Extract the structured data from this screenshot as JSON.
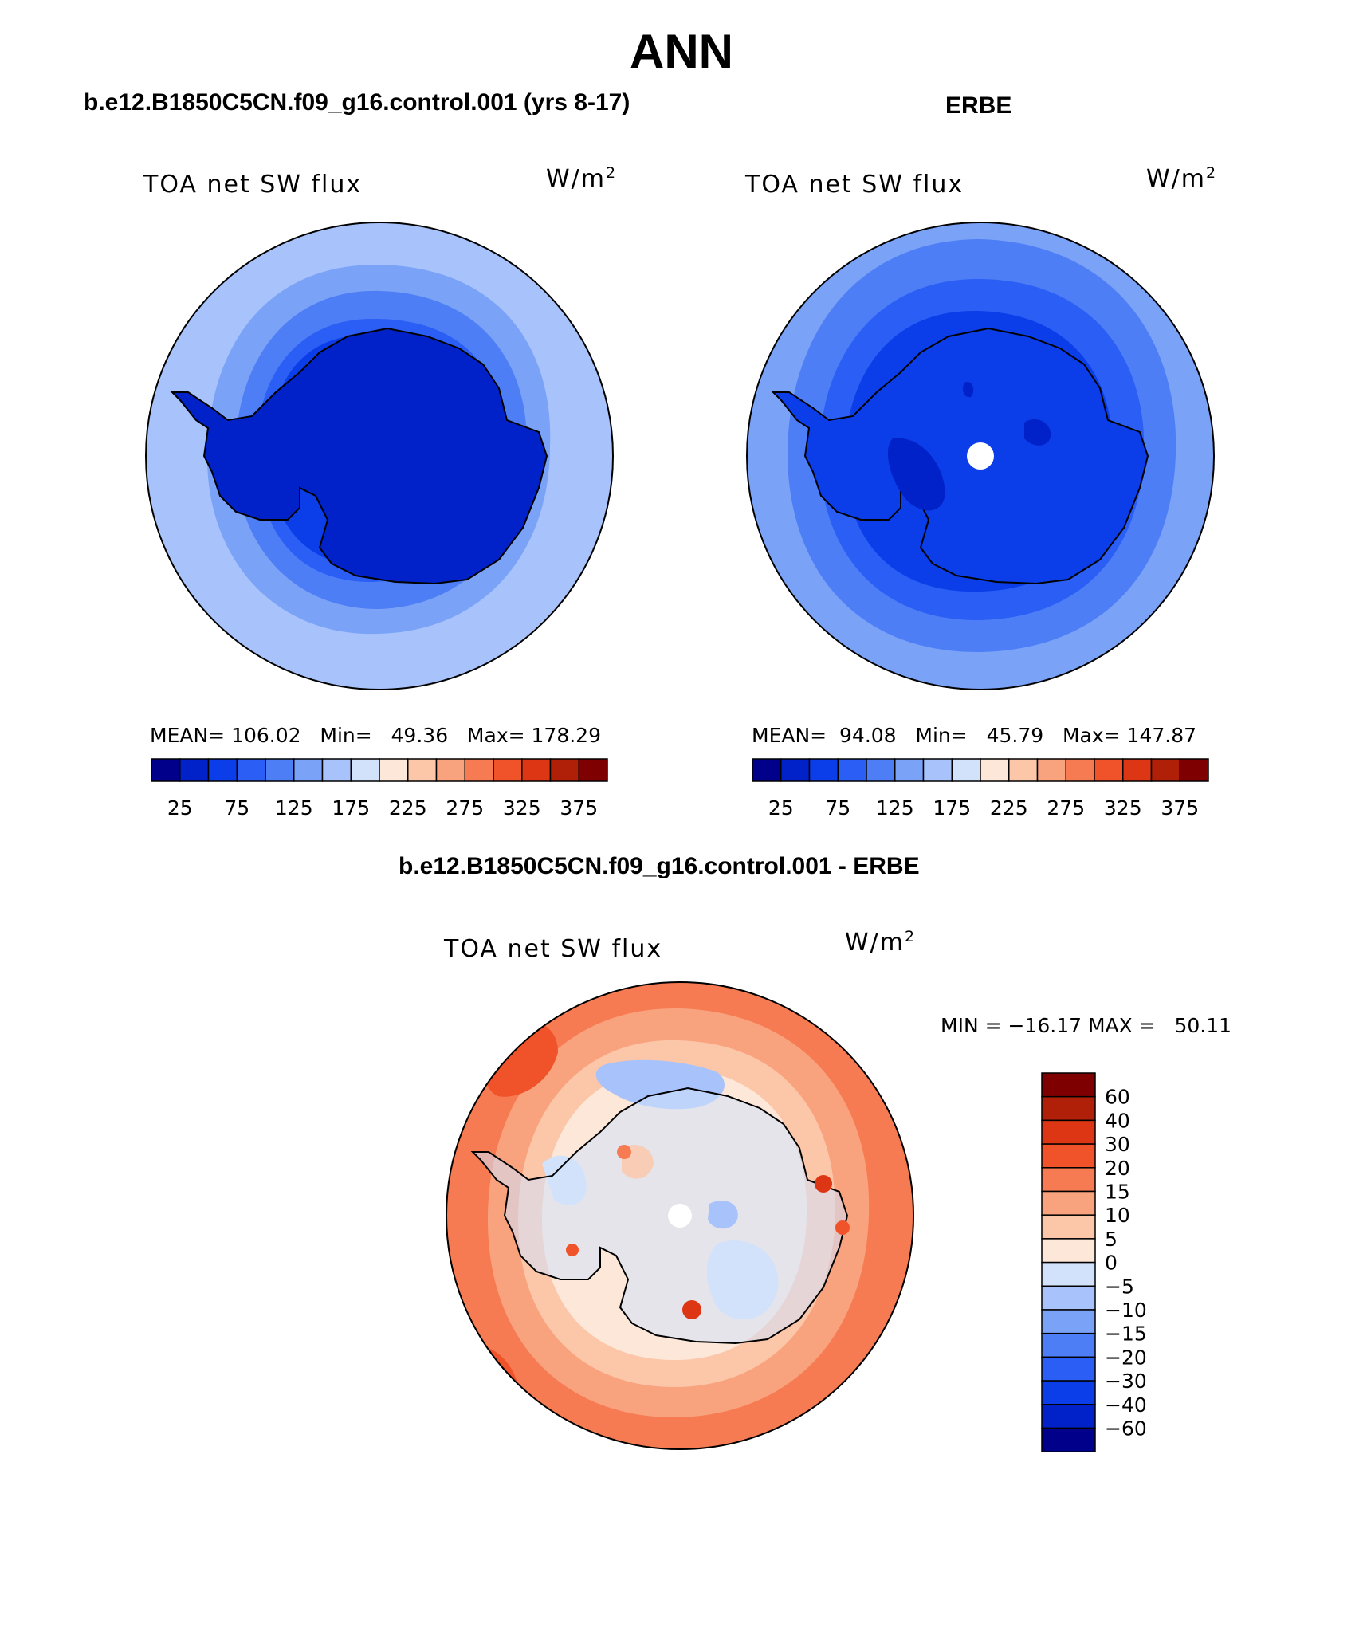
{
  "title": "ANN",
  "palette": [
    "#00008a",
    "#0022c8",
    "#0b3ee8",
    "#2a5ef5",
    "#4d7ef6",
    "#7aa2f7",
    "#a8c3fb",
    "#d2e2fb",
    "#fde7d8",
    "#fcc6a8",
    "#f9a37e",
    "#f67b52",
    "#f0522a",
    "#dc3615",
    "#b02008",
    "#7f0000"
  ],
  "panels": {
    "model": {
      "title": "b.e12.B1850C5CN.f09_g16.control.001 (yrs 8-17)",
      "variable": "TOA net SW flux",
      "units": "W/m",
      "units_sup": "2",
      "stats": "MEAN= 106.02   Min=   49.36   Max= 178.29"
    },
    "obs": {
      "title": "ERBE",
      "variable": "TOA net SW flux",
      "units": "W/m",
      "units_sup": "2",
      "stats": "MEAN=  94.08   Min=   45.79   Max= 147.87"
    },
    "diff": {
      "title": "b.e12.B1850C5CN.f09_g16.control.001 - ERBE",
      "variable": "TOA net SW flux",
      "units": "W/m",
      "units_sup": "2",
      "stats": "MIN = −16.17 MAX =   50.11"
    }
  },
  "colorbar_top": {
    "labels": [
      "25",
      "75",
      "125",
      "175",
      "225",
      "275",
      "325",
      "375"
    ]
  },
  "colorbar_diff": {
    "labels": [
      "60",
      "40",
      "30",
      "20",
      "15",
      "10",
      "5",
      "0",
      "−5",
      "−10",
      "−15",
      "−20",
      "−30",
      "−40",
      "−60"
    ]
  }
}
